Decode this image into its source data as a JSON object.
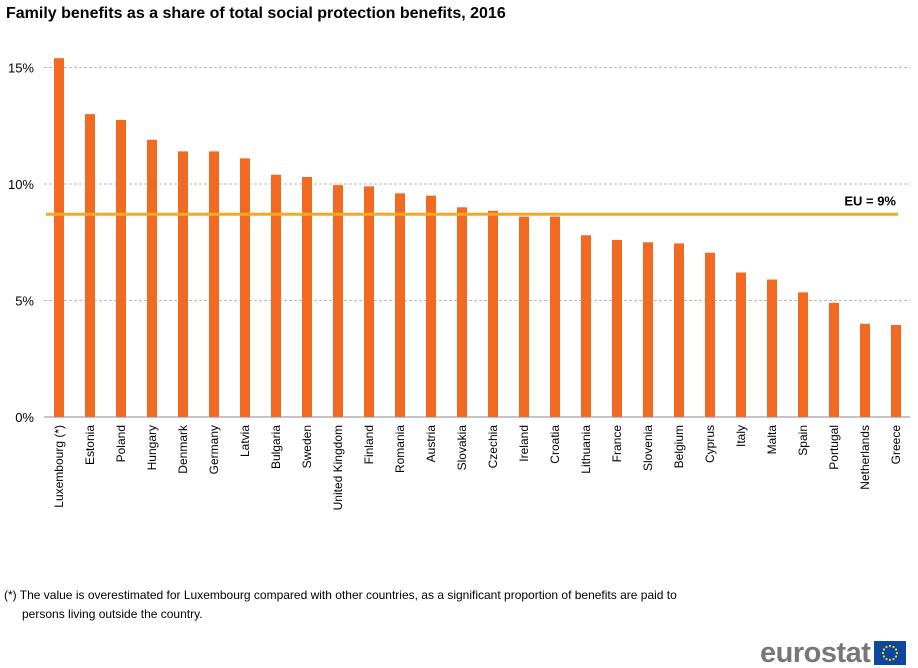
{
  "chart_data": {
    "type": "bar",
    "title": "Family benefits as a share of total social protection benefits, 2016",
    "categories": [
      "Luxembourg (*)",
      "Estonia",
      "Poland",
      "Hungary",
      "Denmark",
      "Germany",
      "Latvia",
      "Bulgaria",
      "Sweden",
      "United Kingdom",
      "Finland",
      "Romania",
      "Austria",
      "Slovakia",
      "Czechia",
      "Ireland",
      "Croatia",
      "Lithuania",
      "France",
      "Slovenia",
      "Belgium",
      "Cyprus",
      "Italy",
      "Malta",
      "Spain",
      "Portugal",
      "Netherlands",
      "Greece"
    ],
    "values": [
      15.4,
      13.0,
      12.75,
      11.9,
      11.4,
      11.4,
      11.1,
      10.4,
      10.3,
      9.95,
      9.9,
      9.6,
      9.5,
      9.0,
      8.85,
      8.6,
      8.6,
      7.8,
      7.6,
      7.5,
      7.45,
      7.05,
      6.2,
      5.9,
      5.35,
      4.9,
      4.0,
      3.95
    ],
    "unit": "%",
    "ylim": [
      0,
      16
    ],
    "yticks": [
      0,
      5,
      10,
      15
    ],
    "ytick_labels": [
      "0%",
      "5%",
      "10%",
      "15%"
    ],
    "grid": true,
    "reference_line": {
      "value": 8.7,
      "label": "EU = 9%",
      "color": "#F7A823"
    },
    "bar_color": "#F26A21"
  },
  "footnote": {
    "line1": "(*) The value is overestimated for Luxembourg compared with other countries, as a significant proportion of benefits are paid to",
    "line2": "persons living outside the country."
  },
  "logo": {
    "text": "eurostat"
  }
}
